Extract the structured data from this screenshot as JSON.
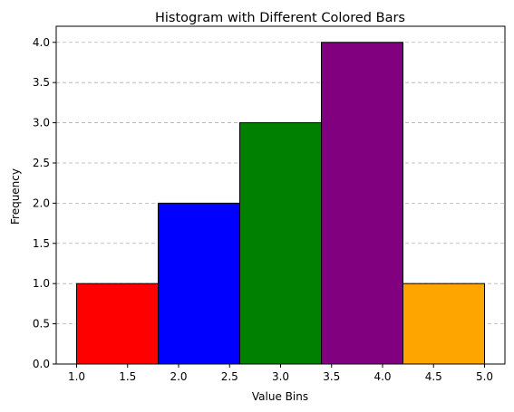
{
  "chart_data": {
    "type": "bar",
    "title": "Histogram with Different Colored Bars",
    "xlabel": "Value Bins",
    "ylabel": "Frequency",
    "bins": [
      {
        "start": 1.0,
        "end": 1.8,
        "value": 1,
        "color": "#ff0000"
      },
      {
        "start": 1.8,
        "end": 2.6,
        "value": 2,
        "color": "#0000ff"
      },
      {
        "start": 2.6,
        "end": 3.4,
        "value": 3,
        "color": "#008000"
      },
      {
        "start": 3.4,
        "end": 4.2,
        "value": 4,
        "color": "#800080"
      },
      {
        "start": 4.2,
        "end": 5.0,
        "value": 1,
        "color": "#ffa500"
      }
    ],
    "xlim": [
      0.8,
      5.2
    ],
    "ylim": [
      0,
      4.2
    ],
    "xticks": [
      "1.0",
      "1.5",
      "2.0",
      "2.5",
      "3.0",
      "3.5",
      "4.0",
      "4.5",
      "5.0"
    ],
    "yticks": [
      "0.0",
      "0.5",
      "1.0",
      "1.5",
      "2.0",
      "2.5",
      "3.0",
      "3.5",
      "4.0"
    ],
    "grid": "y-dashed",
    "edge_color": "#000000"
  }
}
